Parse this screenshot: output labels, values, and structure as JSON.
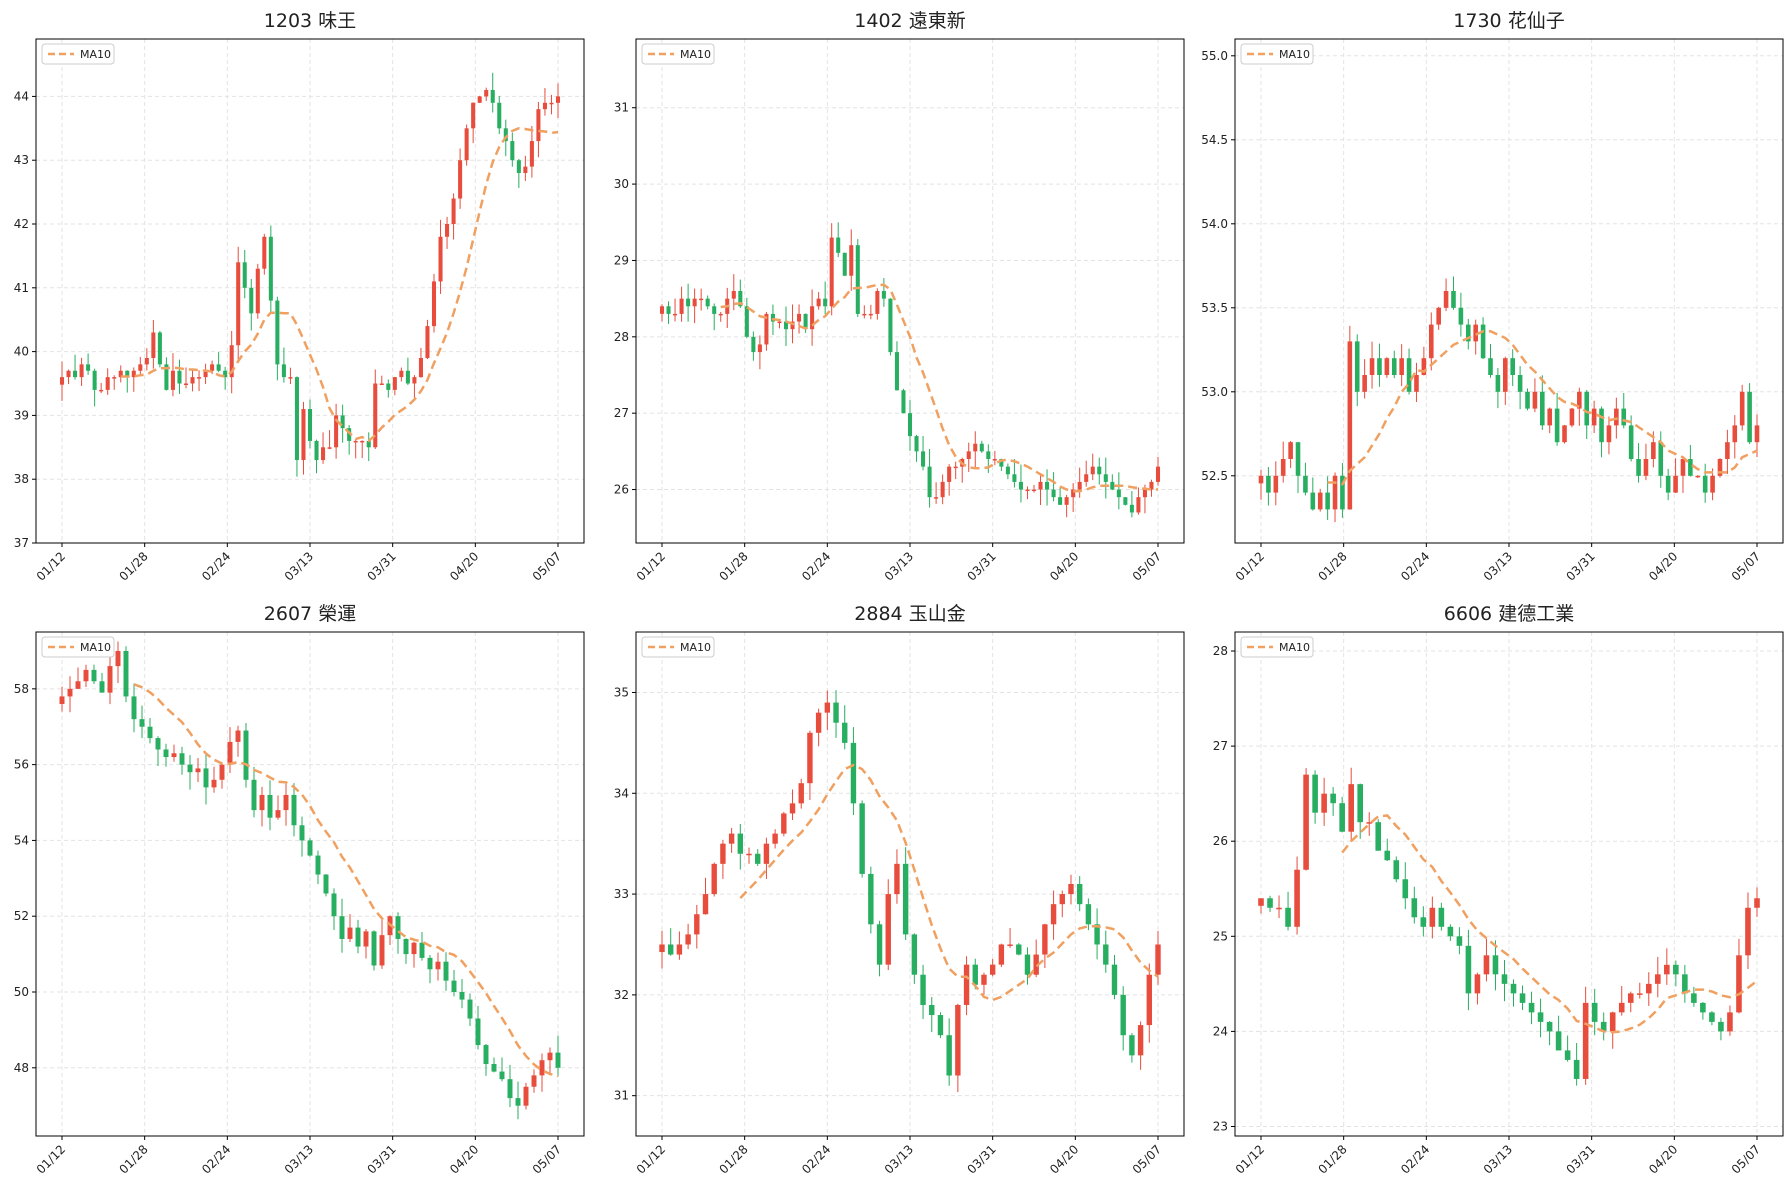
{
  "colors": {
    "up": "#e74c3c",
    "down": "#27ae60",
    "ma": "#f0a060",
    "grid": "#e3e3e3",
    "frame": "#000000"
  },
  "chart_data": [
    {
      "type": "candlestick",
      "title": "1203 味王",
      "legend": {
        "label": "MA10",
        "placement": "top-left"
      },
      "grid": true,
      "ylim": [
        37,
        44.9
      ],
      "yticks": [
        "37",
        "38",
        "39",
        "40",
        "41",
        "42",
        "43",
        "44"
      ],
      "xticks": [
        "01/12",
        "01/28",
        "02/24",
        "03/13",
        "03/31",
        "04/20",
        "05/07"
      ],
      "close": [
        39.6,
        39.7,
        39.6,
        39.8,
        39.7,
        39.4,
        39.4,
        39.6,
        39.6,
        39.7,
        39.6,
        39.7,
        39.8,
        39.9,
        40.3,
        39.8,
        39.4,
        39.7,
        39.5,
        39.5,
        39.6,
        39.6,
        39.7,
        39.8,
        39.7,
        39.6,
        40.1,
        41.4,
        41.0,
        40.6,
        41.3,
        41.8,
        40.8,
        39.8,
        39.6,
        39.6,
        38.3,
        39.1,
        38.6,
        38.3,
        38.5,
        38.5,
        39.0,
        38.8,
        38.6,
        38.6,
        38.6,
        38.5,
        39.5,
        39.5,
        39.4,
        39.6,
        39.7,
        39.5,
        39.6,
        39.9,
        40.4,
        41.1,
        41.8,
        42.0,
        42.4,
        43.0,
        43.5,
        43.9,
        44.0,
        44.1,
        43.9,
        43.5,
        43.3,
        43.0,
        42.8,
        42.9,
        43.3,
        43.8,
        43.9,
        43.9,
        44.0
      ]
    },
    {
      "type": "candlestick",
      "title": "1402 遠東新",
      "legend": {
        "label": "MA10",
        "placement": "top-left"
      },
      "grid": true,
      "ylim": [
        25.3,
        31.9
      ],
      "yticks": [
        "26",
        "27",
        "28",
        "29",
        "30",
        "31"
      ],
      "xticks": [
        "01/12",
        "01/28",
        "02/24",
        "03/13",
        "03/31",
        "04/20",
        "05/07"
      ],
      "close": [
        28.4,
        28.3,
        28.3,
        28.5,
        28.4,
        28.5,
        28.5,
        28.4,
        28.3,
        28.3,
        28.5,
        28.6,
        28.4,
        28.0,
        27.8,
        27.9,
        28.3,
        28.2,
        28.2,
        28.1,
        28.2,
        28.3,
        28.1,
        28.4,
        28.5,
        28.4,
        29.3,
        29.1,
        28.8,
        29.2,
        28.3,
        28.3,
        28.3,
        28.6,
        28.5,
        27.8,
        27.3,
        27.0,
        26.7,
        26.5,
        26.3,
        25.9,
        25.9,
        26.1,
        26.3,
        26.3,
        26.4,
        26.5,
        26.6,
        26.5,
        26.4,
        26.4,
        26.3,
        26.2,
        26.1,
        26.0,
        26.0,
        26.0,
        26.1,
        26.0,
        25.9,
        25.8,
        25.9,
        26.0,
        26.1,
        26.2,
        26.3,
        26.2,
        26.1,
        26.0,
        25.9,
        25.8,
        25.7,
        25.9,
        26.0,
        26.1,
        26.3
      ]
    },
    {
      "type": "candlestick",
      "title": "1730 花仙子",
      "legend": {
        "label": "MA10",
        "placement": "top-left"
      },
      "grid": true,
      "ylim": [
        52.1,
        55.1
      ],
      "yticks": [
        "52.5",
        "53.0",
        "53.5",
        "54.0",
        "54.5",
        "55.0"
      ],
      "xticks": [
        "01/12",
        "01/28",
        "02/24",
        "03/13",
        "03/31",
        "04/20",
        "05/07"
      ],
      "close": [
        52.5,
        52.4,
        52.5,
        52.6,
        52.7,
        52.5,
        52.4,
        52.3,
        52.4,
        52.3,
        52.5,
        52.3,
        53.3,
        53.0,
        53.1,
        53.2,
        53.1,
        53.2,
        53.1,
        53.2,
        53.0,
        53.1,
        53.2,
        53.4,
        53.5,
        53.6,
        53.5,
        53.4,
        53.3,
        53.4,
        53.2,
        53.1,
        53.0,
        53.2,
        53.1,
        53.0,
        52.9,
        53.0,
        52.8,
        52.9,
        52.7,
        52.8,
        52.9,
        53.0,
        52.8,
        52.9,
        52.7,
        52.8,
        52.9,
        52.8,
        52.6,
        52.5,
        52.6,
        52.7,
        52.5,
        52.4,
        52.5,
        52.6,
        52.5,
        52.5,
        52.4,
        52.5,
        52.6,
        52.7,
        52.8,
        53.0,
        52.7,
        52.8
      ]
    },
    {
      "type": "candlestick",
      "title": "2607 榮運",
      "legend": {
        "label": "MA10",
        "placement": "top-left"
      },
      "grid": true,
      "ylim": [
        46.2,
        59.5
      ],
      "yticks": [
        "48",
        "50",
        "52",
        "54",
        "56",
        "58"
      ],
      "xticks": [
        "01/12",
        "01/28",
        "02/24",
        "03/13",
        "03/31",
        "04/20",
        "05/07"
      ],
      "close": [
        57.8,
        58.0,
        58.2,
        58.5,
        58.2,
        57.9,
        58.6,
        59.0,
        57.8,
        57.2,
        57.0,
        56.7,
        56.4,
        56.2,
        56.3,
        56.0,
        55.8,
        55.9,
        55.4,
        55.6,
        56.0,
        56.6,
        56.9,
        55.6,
        54.8,
        55.2,
        54.6,
        54.8,
        55.2,
        54.4,
        54.0,
        53.6,
        53.1,
        52.6,
        52.0,
        51.4,
        51.7,
        51.2,
        51.6,
        50.7,
        51.5,
        52.0,
        51.4,
        51.0,
        51.3,
        50.9,
        50.6,
        50.8,
        50.3,
        50.0,
        49.8,
        49.3,
        48.6,
        48.1,
        47.9,
        47.7,
        47.2,
        47.0,
        47.5,
        47.8,
        48.2,
        48.4,
        48.0
      ]
    },
    {
      "type": "candlestick",
      "title": "2884 玉山金",
      "legend": {
        "label": "MA10",
        "placement": "top-left"
      },
      "grid": true,
      "ylim": [
        30.6,
        35.6
      ],
      "yticks": [
        "31",
        "32",
        "33",
        "34",
        "35"
      ],
      "xticks": [
        "01/12",
        "01/28",
        "02/24",
        "03/13",
        "03/31",
        "04/20",
        "05/07"
      ],
      "close": [
        32.5,
        32.4,
        32.5,
        32.6,
        32.8,
        33.0,
        33.3,
        33.5,
        33.6,
        33.4,
        33.4,
        33.3,
        33.5,
        33.6,
        33.8,
        33.9,
        34.1,
        34.6,
        34.8,
        34.9,
        34.7,
        34.5,
        33.9,
        33.2,
        32.7,
        32.3,
        33.0,
        33.3,
        32.6,
        32.2,
        31.9,
        31.8,
        31.6,
        31.2,
        31.9,
        32.3,
        32.1,
        32.2,
        32.3,
        32.5,
        32.5,
        32.4,
        32.2,
        32.4,
        32.7,
        32.9,
        33.0,
        33.1,
        32.9,
        32.7,
        32.5,
        32.3,
        32.0,
        31.6,
        31.4,
        31.7,
        32.2,
        32.5
      ]
    },
    {
      "type": "candlestick",
      "title": "6606 建德工業",
      "legend": {
        "label": "MA10",
        "placement": "top-left"
      },
      "grid": true,
      "ylim": [
        22.9,
        28.2
      ],
      "yticks": [
        "23",
        "24",
        "25",
        "26",
        "27",
        "28"
      ],
      "xticks": [
        "01/12",
        "01/28",
        "02/24",
        "03/13",
        "03/31",
        "04/20",
        "05/07"
      ],
      "close": [
        25.4,
        25.3,
        25.3,
        25.1,
        25.7,
        26.7,
        26.3,
        26.5,
        26.4,
        26.1,
        26.6,
        26.2,
        26.2,
        25.9,
        25.8,
        25.6,
        25.4,
        25.2,
        25.1,
        25.3,
        25.1,
        25.0,
        24.9,
        24.4,
        24.6,
        24.8,
        24.6,
        24.5,
        24.4,
        24.3,
        24.2,
        24.1,
        24.0,
        23.8,
        23.7,
        23.5,
        24.3,
        24.1,
        24.0,
        24.2,
        24.3,
        24.4,
        24.4,
        24.5,
        24.6,
        24.7,
        24.6,
        24.4,
        24.3,
        24.2,
        24.1,
        24.0,
        24.2,
        24.8,
        25.3,
        25.4
      ]
    }
  ]
}
